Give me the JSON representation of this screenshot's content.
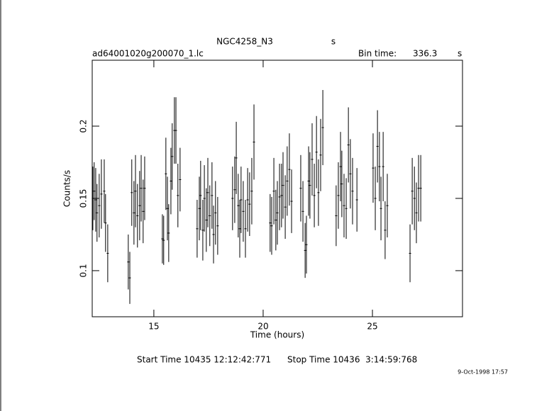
{
  "chart_data": {
    "type": "errorbar",
    "title": "NGC4258_N3",
    "title_suffix": "s",
    "subtitle": "ad64001020g200070_1.lc",
    "bin_time_label": "Bin time:",
    "bin_time": 336.3,
    "bin_time_unit": "s",
    "x_label": "Time (hours)",
    "y_label": "Counts/s",
    "start_label": "Start Time 10435 12:12:42:771",
    "stop_label": "Stop Time 10436  3:14:59:768",
    "timestamp": "9-Oct-1998 17:57",
    "color": "#000000",
    "xlim": [
      12.18,
      29.12
    ],
    "ylim": [
      0.0681,
      0.2456
    ],
    "xticks": [
      15,
      20,
      25
    ],
    "yticks": [
      0.1,
      0.15,
      0.2
    ],
    "x": [
      12.21,
      12.27,
      12.34,
      12.4,
      12.5,
      12.6,
      12.73,
      12.79,
      12.89,
      13.83,
      13.9,
      13.99,
      14.09,
      14.16,
      14.25,
      14.35,
      14.42,
      14.51,
      14.58,
      15.39,
      15.45,
      15.55,
      15.62,
      15.68,
      15.78,
      15.84,
      15.94,
      16.01,
      16.1,
      16.2,
      16.98,
      17.08,
      17.14,
      17.24,
      17.31,
      17.4,
      17.47,
      17.56,
      17.66,
      17.73,
      17.82,
      17.92,
      18.6,
      18.7,
      18.77,
      18.86,
      18.93,
      18.99,
      19.09,
      19.19,
      19.29,
      19.38,
      19.48,
      19.58,
      20.32,
      20.39,
      20.49,
      20.58,
      20.65,
      20.75,
      20.84,
      20.91,
      21.01,
      21.1,
      21.2,
      21.3,
      21.72,
      21.82,
      21.92,
      21.98,
      22.08,
      22.14,
      22.24,
      22.34,
      22.44,
      22.53,
      22.63,
      22.73,
      23.34,
      23.44,
      23.54,
      23.6,
      23.7,
      23.8,
      23.9,
      23.99,
      24.09,
      24.29,
      25.03,
      25.13,
      25.23,
      25.32,
      25.39,
      25.49,
      25.58,
      25.68,
      26.72,
      26.82,
      26.92,
      27.01,
      27.11,
      27.21
    ],
    "values": [
      0.15,
      0.155,
      0.149,
      0.14,
      0.145,
      0.153,
      0.155,
      0.133,
      0.112,
      0.106,
      0.095,
      0.154,
      0.14,
      0.155,
      0.138,
      0.145,
      0.157,
      0.141,
      0.157,
      0.122,
      0.121,
      0.167,
      0.143,
      0.126,
      0.162,
      0.179,
      0.197,
      0.197,
      0.152,
      0.163,
      0.129,
      0.143,
      0.152,
      0.128,
      0.15,
      0.135,
      0.154,
      0.138,
      0.152,
      0.125,
      0.14,
      0.131,
      0.15,
      0.156,
      0.178,
      0.145,
      0.129,
      0.149,
      0.141,
      0.129,
      0.149,
      0.146,
      0.155,
      0.189,
      0.133,
      0.131,
      0.155,
      0.135,
      0.14,
      0.151,
      0.152,
      0.159,
      0.144,
      0.162,
      0.17,
      0.148,
      0.157,
      0.141,
      0.114,
      0.118,
      0.162,
      0.159,
      0.177,
      0.152,
      0.182,
      0.154,
      0.18,
      0.199,
      0.138,
      0.152,
      0.172,
      0.16,
      0.145,
      0.143,
      0.187,
      0.167,
      0.155,
      0.149,
      0.171,
      0.15,
      0.186,
      0.172,
      0.143,
      0.172,
      0.128,
      0.145,
      0.112,
      0.155,
      0.15,
      0.14,
      0.157,
      0.157
    ],
    "errors": [
      0.022,
      0.02,
      0.022,
      0.02,
      0.022,
      0.024,
      0.022,
      0.02,
      0.02,
      0.019,
      0.018,
      0.023,
      0.022,
      0.025,
      0.022,
      0.024,
      0.023,
      0.022,
      0.022,
      0.017,
      0.017,
      0.025,
      0.022,
      0.02,
      0.023,
      0.023,
      0.023,
      0.023,
      0.022,
      0.022,
      0.02,
      0.022,
      0.024,
      0.021,
      0.023,
      0.022,
      0.024,
      0.021,
      0.023,
      0.02,
      0.022,
      0.02,
      0.022,
      0.023,
      0.025,
      0.022,
      0.02,
      0.023,
      0.021,
      0.02,
      0.022,
      0.022,
      0.023,
      0.026,
      0.02,
      0.02,
      0.023,
      0.021,
      0.022,
      0.023,
      0.022,
      0.023,
      0.022,
      0.024,
      0.025,
      0.022,
      0.023,
      0.021,
      0.019,
      0.02,
      0.024,
      0.023,
      0.025,
      0.022,
      0.025,
      0.023,
      0.025,
      0.026,
      0.021,
      0.023,
      0.024,
      0.023,
      0.022,
      0.021,
      0.026,
      0.024,
      0.023,
      0.022,
      0.024,
      0.022,
      0.025,
      0.024,
      0.022,
      0.024,
      0.02,
      0.022,
      0.02,
      0.023,
      0.022,
      0.021,
      0.023,
      0.023
    ]
  }
}
